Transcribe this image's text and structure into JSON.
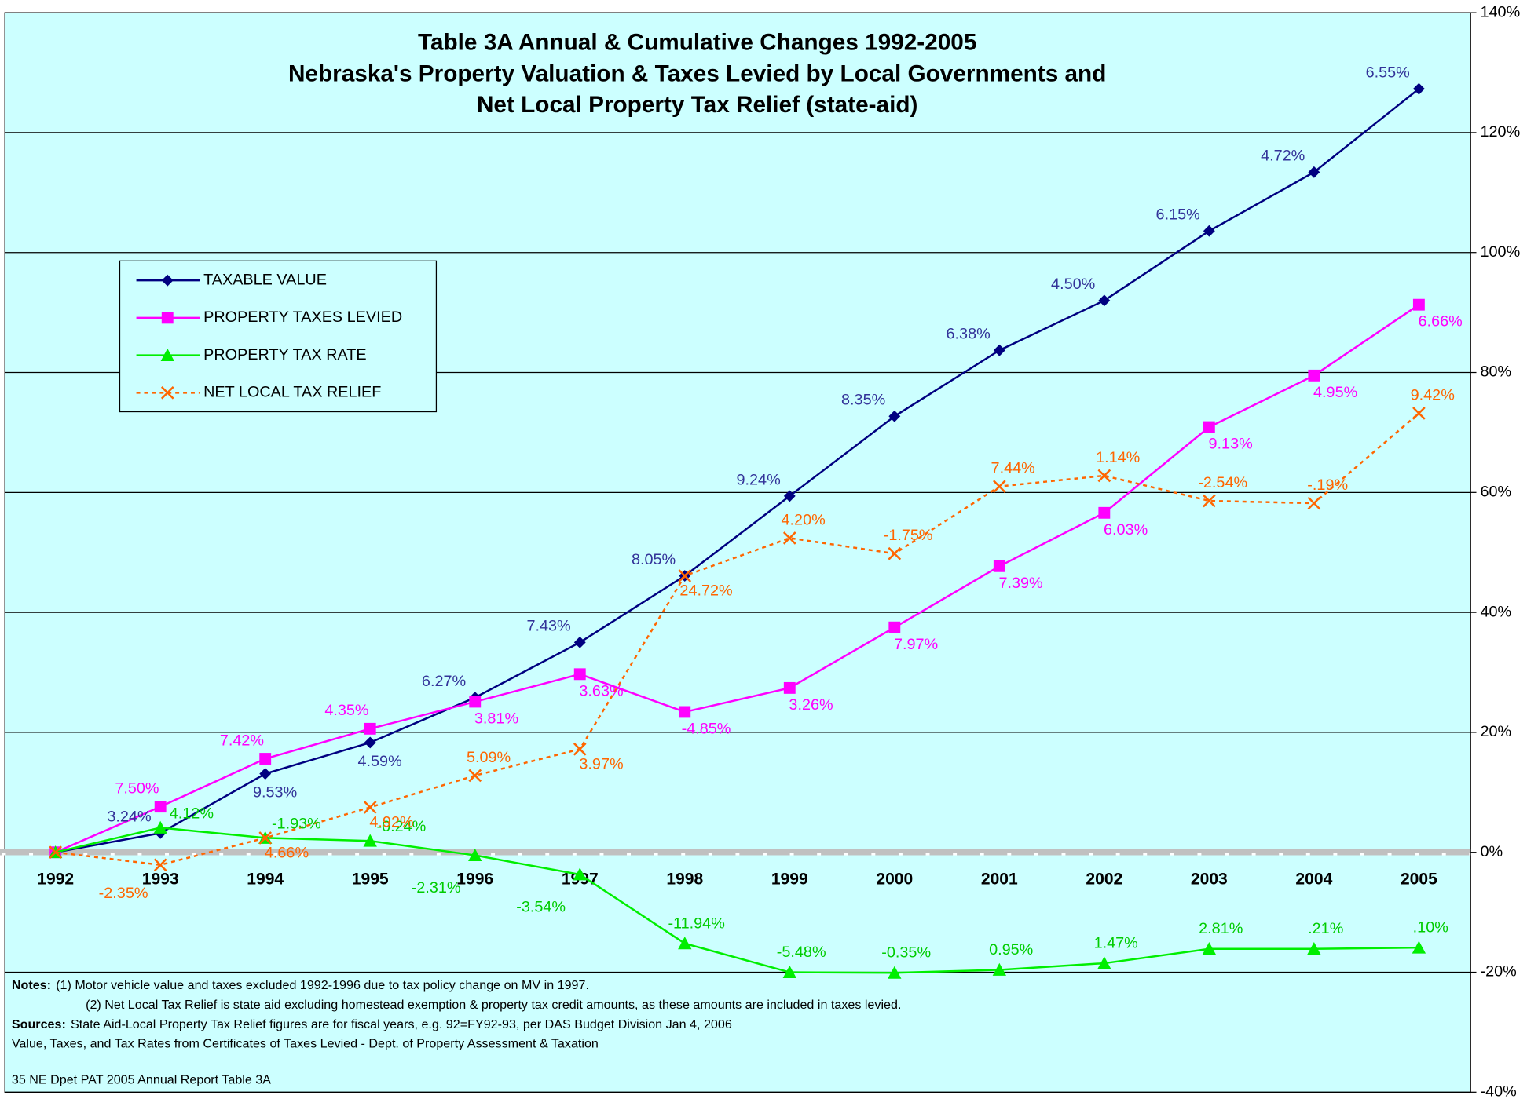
{
  "chart_data": {
    "type": "line",
    "title": [
      "Table 3A  Annual & Cumulative Changes 1992-2005",
      "Nebraska's Property Valuation & Taxes Levied by Local Governments and",
      "Net Local Property Tax Relief (state-aid)"
    ],
    "categories": [
      "1992",
      "1993",
      "1994",
      "1995",
      "1996",
      "1997",
      "1998",
      "1999",
      "2000",
      "2001",
      "2002",
      "2003",
      "2004",
      "2005"
    ],
    "ylim": [
      -40,
      140
    ],
    "yticks": [
      {
        "value": -40,
        "label": "-40%"
      },
      {
        "value": -20,
        "label": "-20%"
      },
      {
        "value": 0,
        "label": "0%"
      },
      {
        "value": 20,
        "label": "20%"
      },
      {
        "value": 40,
        "label": "40%"
      },
      {
        "value": 60,
        "label": "60%"
      },
      {
        "value": 80,
        "label": "80%"
      },
      {
        "value": 100,
        "label": "100%"
      },
      {
        "value": 120,
        "label": "120%"
      },
      {
        "value": 140,
        "label": "140%"
      }
    ],
    "grid": true,
    "legend": "upper left",
    "series": [
      {
        "name": "TAXABLE VALUE",
        "color": "#000080",
        "marker": "diamond",
        "dash": false,
        "values": [
          0,
          3.2,
          13.1,
          18.3,
          25.8,
          35.0,
          46.1,
          59.4,
          72.7,
          83.7,
          92.0,
          103.6,
          113.4,
          127.3
        ],
        "annual_change_labels": [
          null,
          "3.24%",
          "9.53%",
          "4.59%",
          "6.27%",
          "7.43%",
          "8.05%",
          "9.24%",
          "8.35%",
          "6.38%",
          "4.50%",
          "6.15%",
          "4.72%",
          "6.55%"
        ]
      },
      {
        "name": "PROPERTY TAXES LEVIED",
        "color": "#ff00ff",
        "marker": "square",
        "dash": false,
        "values": [
          0,
          7.6,
          15.6,
          20.6,
          25.1,
          29.7,
          23.4,
          27.4,
          37.5,
          47.7,
          56.6,
          70.9,
          79.5,
          91.3
        ],
        "annual_change_labels": [
          null,
          "7.50%",
          "7.42%",
          "4.35%",
          "3.81%",
          "3.63%",
          "-4.85%",
          "3.26%",
          "7.97%",
          "7.39%",
          "6.03%",
          "9.13%",
          "4.95%",
          "6.66%"
        ]
      },
      {
        "name": "PROPERTY TAX RATE",
        "color": "#00ee00",
        "marker": "triangle",
        "dash": false,
        "values": [
          0,
          4.1,
          2.4,
          1.9,
          -0.5,
          -3.7,
          -15.2,
          -20.0,
          -20.1,
          -19.6,
          -18.5,
          -16.1,
          -16.1,
          -15.9
        ],
        "annual_change_labels": [
          null,
          "4.12%",
          "-1.93%",
          "-0.24%",
          "-2.31%",
          "-3.54%",
          "-11.94%",
          "-5.48%",
          "-0.35%",
          "0.95%",
          "1.47%",
          "2.81%",
          ".21%",
          ".10%"
        ]
      },
      {
        "name": "NET LOCAL TAX RELIEF",
        "color": "#ff6600",
        "marker": "x",
        "dash": true,
        "values": [
          0,
          -2.1,
          2.4,
          7.5,
          12.8,
          17.2,
          46.1,
          52.4,
          49.8,
          61.0,
          62.8,
          58.6,
          58.2,
          73.2
        ],
        "annual_change_labels": [
          null,
          "-2.35%",
          "4.66%",
          "4.92%",
          "5.09%",
          "3.97%",
          "24.72%",
          "4.20%",
          "-1.75%",
          "7.44%",
          "1.14%",
          "-2.54%",
          "-.19%",
          "9.42%"
        ]
      }
    ]
  },
  "notes": [
    {
      "label": "Notes:",
      "text": "(1) Motor vehicle value and taxes excluded 1992-1996 due to tax policy change on MV in 1997."
    },
    {
      "text": "(2) Net Local Tax Relief is state aid excluding homestead exemption & property tax credit amounts, as these amounts are included in taxes levied."
    },
    {
      "label": "Sources:",
      "text": "State Aid-Local Property Tax Relief figures are for fiscal years, e.g. 92=FY92-93, per DAS Budget Division Jan 4, 2006"
    },
    {
      "text": "Value, Taxes, and Tax Rates from Certificates of Taxes Levied - Dept. of Property Assessment & Taxation"
    }
  ],
  "footer": "35  NE Dpet PAT 2005 Annual Report Table 3A"
}
